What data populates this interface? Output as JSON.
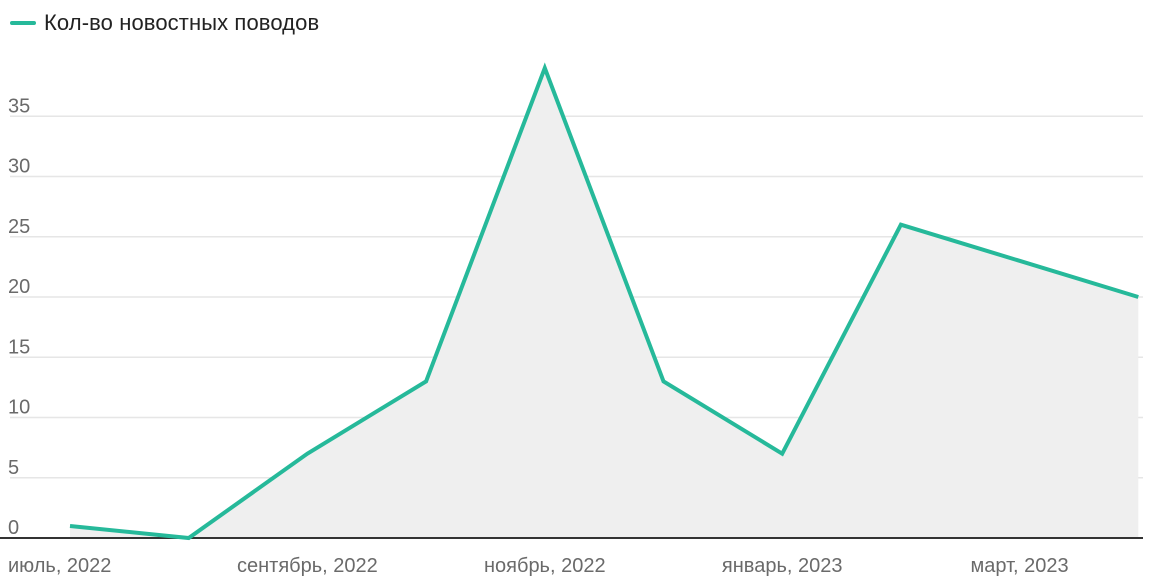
{
  "colors": {
    "line": "#26b99a",
    "area": "#efefef",
    "grid": "#e6e6e6",
    "axis": "#333333",
    "tick_text": "#6a6a6a"
  },
  "legend": {
    "label": "Кол-во новостных поводов",
    "position": "top-left"
  },
  "chart_data": {
    "type": "area",
    "series": [
      {
        "name": "Кол-во новостных поводов",
        "values": [
          1,
          0,
          7,
          13,
          39,
          13,
          7,
          26,
          23,
          20
        ]
      }
    ],
    "x": [
      "2022-07",
      "2022-08",
      "2022-09",
      "2022-10",
      "2022-11",
      "2022-12",
      "2023-01",
      "2023-02",
      "2023-03",
      "2023-04"
    ],
    "x_tick_labels": [
      {
        "x": "2022-07",
        "label": "июль, 2022"
      },
      {
        "x": "2022-09",
        "label": "сентябрь, 2022"
      },
      {
        "x": "2022-11",
        "label": "ноябрь, 2022"
      },
      {
        "x": "2023-01",
        "label": "январь, 2023"
      },
      {
        "x": "2023-03",
        "label": "март, 2023"
      }
    ],
    "y_ticks": [
      0,
      5,
      10,
      15,
      20,
      25,
      30,
      35
    ],
    "ylim": [
      0,
      40
    ],
    "grid": true
  }
}
